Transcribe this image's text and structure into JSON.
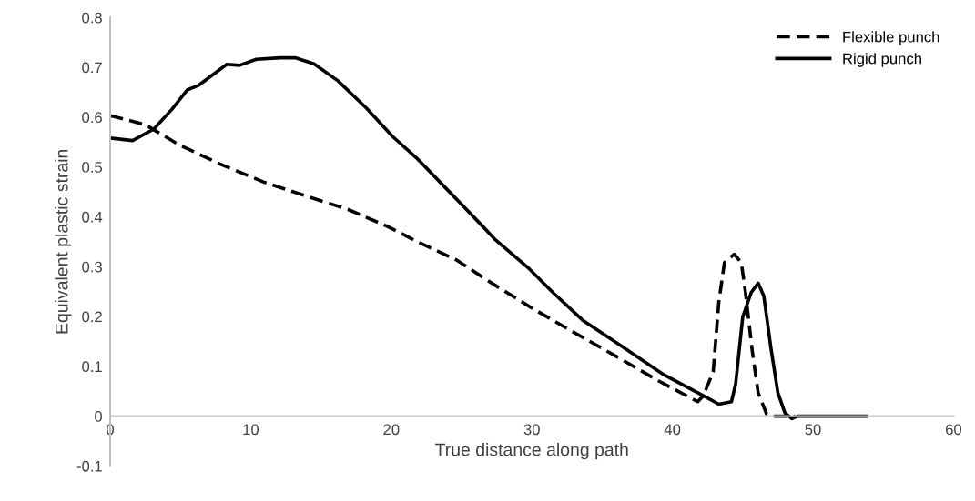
{
  "chart_data": {
    "type": "line",
    "xlabel": "True distance along path",
    "ylabel": "Equivalent plastic strain",
    "xlim": [
      0,
      60
    ],
    "xticks": [
      0,
      10,
      20,
      30,
      40,
      50,
      60
    ],
    "ylim": [
      -0.1,
      0.8
    ],
    "yticks": [
      -0.1,
      0,
      0.1,
      0.2,
      0.3,
      0.4,
      0.5,
      0.6,
      0.7,
      0.8
    ],
    "grid": false,
    "legend": "top right",
    "marker": "none",
    "series": [
      {
        "name": "Flexible punch",
        "color": "#000000",
        "line_style": "dashed",
        "x": [
          0,
          2.5,
          4.8,
          7.8,
          10.9,
          13.9,
          16.9,
          19.7,
          22.0,
          24.6,
          27.2,
          30.0,
          33.0,
          36.0,
          39.0,
          41.8,
          42.2,
          42.9,
          43.3,
          43.7,
          44.4,
          44.9,
          45.2,
          45.7,
          46.1,
          46.7,
          47.2,
          48.7
        ],
        "values": [
          0.603,
          0.585,
          0.546,
          0.506,
          0.47,
          0.442,
          0.415,
          0.381,
          0.348,
          0.314,
          0.266,
          0.217,
          0.168,
          0.12,
          0.071,
          0.029,
          0.041,
          0.089,
          0.229,
          0.308,
          0.325,
          0.308,
          0.248,
          0.126,
          0.047,
          0.004,
          0,
          0
        ]
      },
      {
        "name": "Rigid punch",
        "color": "#000000",
        "line_style": "solid",
        "x": [
          0,
          1.6,
          3.1,
          4.4,
          5.5,
          6.3,
          8.3,
          9.2,
          10.4,
          12.1,
          13.2,
          14.5,
          16.2,
          18.2,
          20.1,
          21.8,
          24.0,
          26.5,
          27.4,
          29.8,
          31.5,
          33.6,
          36.2,
          39.4,
          42.2,
          43.3,
          44.2,
          44.5,
          45.0,
          45.6,
          46.1,
          46.5,
          47.0,
          47.5,
          48.0,
          48.5,
          48.9,
          53.8
        ],
        "values": [
          0.558,
          0.553,
          0.576,
          0.616,
          0.655,
          0.664,
          0.706,
          0.704,
          0.716,
          0.719,
          0.719,
          0.707,
          0.673,
          0.619,
          0.561,
          0.518,
          0.454,
          0.381,
          0.354,
          0.296,
          0.248,
          0.193,
          0.144,
          0.083,
          0.041,
          0.024,
          0.029,
          0.065,
          0.199,
          0.248,
          0.267,
          0.241,
          0.138,
          0.047,
          0.007,
          -0.005,
          0,
          0
        ]
      }
    ]
  }
}
